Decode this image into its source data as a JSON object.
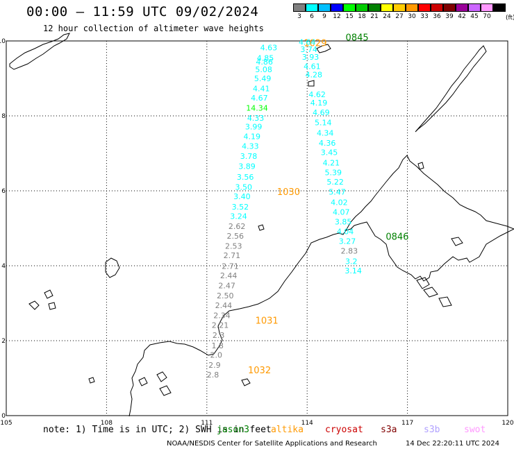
{
  "header": {
    "title": "00:00 – 11:59 UTC 09/02/2024",
    "subtitle": "12 hour collection of altimeter wave heights"
  },
  "legend": {
    "unit": "(ft)",
    "items": [
      {
        "label": "3",
        "color": "#808080"
      },
      {
        "label": "6",
        "color": "#00ffff"
      },
      {
        "label": "9",
        "color": "#00bfff"
      },
      {
        "label": "12",
        "color": "#0000ff"
      },
      {
        "label": "15",
        "color": "#00ff00"
      },
      {
        "label": "18",
        "color": "#00cc00"
      },
      {
        "label": "21",
        "color": "#008000"
      },
      {
        "label": "24",
        "color": "#ffff00"
      },
      {
        "label": "27",
        "color": "#ffcc00"
      },
      {
        "label": "30",
        "color": "#ff9900"
      },
      {
        "label": "33",
        "color": "#ff0000"
      },
      {
        "label": "36",
        "color": "#cc0000"
      },
      {
        "label": "39",
        "color": "#800000"
      },
      {
        "label": "42",
        "color": "#990099"
      },
      {
        "label": "45",
        "color": "#cc66ff"
      },
      {
        "label": "70",
        "color": "#ff99ff"
      },
      {
        "label": "",
        "color": "#000000"
      }
    ]
  },
  "axes": {
    "x_ticks": [
      "105",
      "108",
      "111",
      "114",
      "117",
      "120"
    ],
    "y_ticks": [
      "0",
      "2",
      "4",
      "6",
      "8",
      "10"
    ],
    "lon_range": [
      105,
      120
    ],
    "lat_range": [
      0,
      10
    ]
  },
  "passes": [
    {
      "time_label": "1029",
      "time_color": "#ff9900",
      "points": [
        {
          "lon": 112.85,
          "lat": 9.75,
          "value": "4.63"
        },
        {
          "lon": 112.75,
          "lat": 9.47,
          "value": "4.85"
        },
        {
          "lon": 112.72,
          "lat": 9.37,
          "value": "4.86"
        },
        {
          "lon": 112.7,
          "lat": 9.17,
          "value": "5.08"
        },
        {
          "lon": 112.67,
          "lat": 8.93,
          "value": "5.49"
        },
        {
          "lon": 112.63,
          "lat": 8.66,
          "value": "4.41"
        },
        {
          "lon": 112.57,
          "lat": 8.41,
          "value": "4.67"
        },
        {
          "lon": 112.5,
          "lat": 8.14,
          "value": "14.34"
        },
        {
          "lon": 112.46,
          "lat": 7.87,
          "value": "4.33"
        },
        {
          "lon": 112.4,
          "lat": 7.64,
          "value": "3.99"
        },
        {
          "lon": 112.35,
          "lat": 7.38,
          "value": "4.19"
        },
        {
          "lon": 112.3,
          "lat": 7.12,
          "value": "4.33"
        },
        {
          "lon": 112.25,
          "lat": 6.85,
          "value": "3.78"
        },
        {
          "lon": 112.2,
          "lat": 6.58,
          "value": "3.89"
        },
        {
          "lon": 112.15,
          "lat": 6.3,
          "value": "3.56"
        },
        {
          "lon": 112.1,
          "lat": 6.03,
          "value": "3.50"
        }
      ]
    },
    {
      "time_label": "1030",
      "time_color": "#ff9900",
      "points": [
        {
          "lon": 112.05,
          "lat": 5.78,
          "value": "3.40"
        },
        {
          "lon": 112.0,
          "lat": 5.5,
          "value": "3.52"
        },
        {
          "lon": 111.95,
          "lat": 5.25,
          "value": "3.24"
        },
        {
          "lon": 111.9,
          "lat": 4.98,
          "value": "2.62"
        },
        {
          "lon": 111.85,
          "lat": 4.72,
          "value": "2.56"
        },
        {
          "lon": 111.8,
          "lat": 4.45,
          "value": "2.53"
        },
        {
          "lon": 111.75,
          "lat": 4.2,
          "value": "2.71"
        },
        {
          "lon": 111.7,
          "lat": 3.92,
          "value": "2.71"
        },
        {
          "lon": 111.65,
          "lat": 3.67,
          "value": "2.44"
        },
        {
          "lon": 111.6,
          "lat": 3.4,
          "value": "2.47"
        },
        {
          "lon": 111.55,
          "lat": 3.13,
          "value": "2.50"
        },
        {
          "lon": 111.5,
          "lat": 2.87,
          "value": "2.44"
        },
        {
          "lon": 111.45,
          "lat": 2.6,
          "value": "2.34"
        }
      ]
    },
    {
      "time_label": "1031",
      "time_color": "#ff9900",
      "points": [
        {
          "lon": 111.4,
          "lat": 2.34,
          "value": "2.21"
        },
        {
          "lon": 111.35,
          "lat": 2.07,
          "value": "2.3"
        },
        {
          "lon": 111.32,
          "lat": 1.8,
          "value": "1.8"
        },
        {
          "lon": 111.28,
          "lat": 1.55,
          "value": "2.0"
        },
        {
          "lon": 111.23,
          "lat": 1.28,
          "value": "2.9"
        }
      ]
    },
    {
      "time_label": "1032",
      "time_color": "#ff9900",
      "points": [
        {
          "lon": 111.18,
          "lat": 1.02,
          "value": "2.8"
        }
      ]
    },
    {
      "time_label": "0845",
      "time_color": "#008000",
      "points": [
        {
          "lon": 114.0,
          "lat": 9.9,
          "value": "4.64"
        },
        {
          "lon": 114.05,
          "lat": 9.7,
          "value": "3.74"
        },
        {
          "lon": 114.1,
          "lat": 9.5,
          "value": "3.93"
        },
        {
          "lon": 114.15,
          "lat": 9.25,
          "value": "4.61"
        },
        {
          "lon": 114.2,
          "lat": 9.03,
          "value": "4.28"
        },
        {
          "lon": 114.3,
          "lat": 8.5,
          "value": "4.62"
        },
        {
          "lon": 114.35,
          "lat": 8.28,
          "value": "4.19"
        },
        {
          "lon": 114.42,
          "lat": 8.02,
          "value": "4.69"
        },
        {
          "lon": 114.48,
          "lat": 7.75,
          "value": "5.14"
        },
        {
          "lon": 114.54,
          "lat": 7.47,
          "value": "4.34"
        },
        {
          "lon": 114.6,
          "lat": 7.2,
          "value": "4.36"
        },
        {
          "lon": 114.66,
          "lat": 6.95,
          "value": "3.45"
        },
        {
          "lon": 114.72,
          "lat": 6.68,
          "value": "4.21"
        },
        {
          "lon": 114.78,
          "lat": 6.42,
          "value": "5.39"
        },
        {
          "lon": 114.84,
          "lat": 6.17,
          "value": "5.22"
        },
        {
          "lon": 114.9,
          "lat": 5.9,
          "value": "5.47"
        },
        {
          "lon": 114.96,
          "lat": 5.62,
          "value": "4.02"
        },
        {
          "lon": 115.02,
          "lat": 5.36,
          "value": "4.07"
        },
        {
          "lon": 115.08,
          "lat": 5.1,
          "value": "3.85"
        },
        {
          "lon": 115.14,
          "lat": 4.84,
          "value": "4.04"
        }
      ]
    },
    {
      "time_label": "0846",
      "time_color": "#008000",
      "points": [
        {
          "lon": 115.2,
          "lat": 4.58,
          "value": "3.27"
        },
        {
          "lon": 115.26,
          "lat": 4.32,
          "value": "2.83"
        },
        {
          "lon": 115.32,
          "lat": 4.05,
          "value": "3.2"
        },
        {
          "lon": 115.38,
          "lat": 3.8,
          "value": "3.14"
        }
      ]
    }
  ],
  "satellites": [
    {
      "name": "jason3",
      "color": "#008000"
    },
    {
      "name": "altika",
      "color": "#ff9900"
    },
    {
      "name": "cryosat",
      "color": "#cc0000"
    },
    {
      "name": "s3a",
      "color": "#800000"
    },
    {
      "name": "s3b",
      "color": "#b0a0ff"
    },
    {
      "name": "swot",
      "color": "#ff99ff"
    }
  ],
  "footer": {
    "note": "note: 1) Time is in UTC; 2) SWH is in feet",
    "credit": "NOAA/NESDIS Center for Satellite Applications and Research",
    "timestamp": "14 Dec 22:20:11 UTC 2024"
  }
}
